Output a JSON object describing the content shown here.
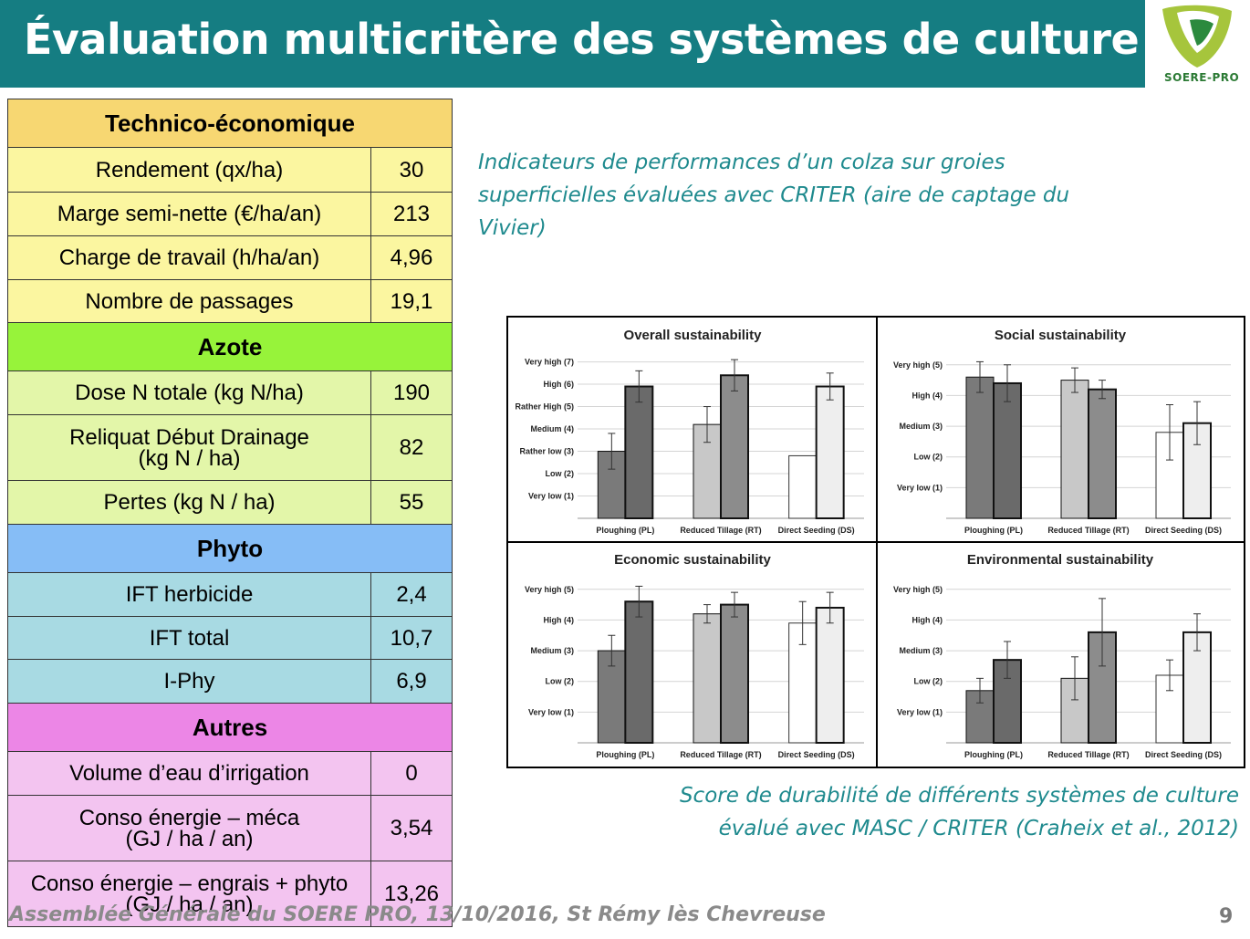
{
  "title": "Évaluation multicritère des systèmes de culture",
  "logo": {
    "text": "SOERE-PRO"
  },
  "table": {
    "groups": [
      {
        "key": "tech",
        "header": "Technico-économique",
        "rows": [
          {
            "label": "Rendement (qx/ha)",
            "value": "30"
          },
          {
            "label": "Marge semi-nette (€/ha/an)",
            "value": "213"
          },
          {
            "label": "Charge de travail (h/ha/an)",
            "value": "4,96"
          },
          {
            "label": "Nombre de passages",
            "value": "19,1"
          }
        ]
      },
      {
        "key": "azote",
        "header": "Azote",
        "rows": [
          {
            "label": "Dose N totale (kg N/ha)",
            "value": "190"
          },
          {
            "label": "Reliquat Début Drainage\n(kg N / ha)",
            "value": "82"
          },
          {
            "label": "Pertes (kg N / ha)",
            "value": "55"
          }
        ]
      },
      {
        "key": "phyto",
        "header": "Phyto",
        "rows": [
          {
            "label": "IFT herbicide",
            "value": "2,4"
          },
          {
            "label": "IFT total",
            "value": "10,7"
          },
          {
            "label": "I-Phy",
            "value": "6,9"
          }
        ]
      },
      {
        "key": "autres",
        "header": "Autres",
        "rows": [
          {
            "label": "Volume d’eau d’irrigation",
            "value": "0"
          },
          {
            "label": "Conso énergie – méca\n(GJ / ha / an)",
            "value": "3,54"
          },
          {
            "label": "Conso énergie – engrais + phyto\n(GJ / ha / an)",
            "value": "13,26"
          }
        ]
      }
    ]
  },
  "caption_top": "Indicateurs de performances d’un colza sur groies superficielles évaluées avec CRITER (aire de captage du Vivier)",
  "caption_bottom_line1": "Score de durabilité de différents systèmes de culture",
  "caption_bottom_line2": "évalué avec MASC / CRITER (Craheix et al., 2012)",
  "footer": "Assemblée Générale du SOERE PRO, 13/10/2016, St Rémy lès Chevreuse",
  "page_number": "9",
  "chart_data": [
    {
      "type": "bar",
      "title": "Overall sustainability",
      "categories": [
        "Ploughing (PL)",
        "Reduced Tillage (RT)",
        "Direct Seeding (DS)"
      ],
      "ylim": [
        0,
        7
      ],
      "yticks": [
        {
          "v": 1,
          "label": "Very low (1)"
        },
        {
          "v": 2,
          "label": "Low (2)"
        },
        {
          "v": 3,
          "label": "Rather low (3)"
        },
        {
          "v": 4,
          "label": "Medium (4)"
        },
        {
          "v": 5,
          "label": "Rather High (5)"
        },
        {
          "v": 6,
          "label": "High (6)"
        },
        {
          "v": 7,
          "label": "Very high (7)"
        }
      ],
      "bars": [
        {
          "cat": 0,
          "values": [
            3.0,
            5.9
          ],
          "err": [
            0.8,
            0.7
          ]
        },
        {
          "cat": 1,
          "values": [
            4.2,
            6.4
          ],
          "err": [
            0.8,
            0.7
          ]
        },
        {
          "cat": 2,
          "values": [
            2.8,
            5.9
          ],
          "err": [
            0,
            0.6
          ]
        }
      ]
    },
    {
      "type": "bar",
      "title": "Social sustainability",
      "categories": [
        "Ploughing (PL)",
        "Reduced Tillage (RT)",
        "Direct Seeding (DS)"
      ],
      "ylim": [
        0,
        5
      ],
      "yticks": [
        {
          "v": 1,
          "label": "Very low (1)"
        },
        {
          "v": 2,
          "label": "Low (2)"
        },
        {
          "v": 3,
          "label": "Medium (3)"
        },
        {
          "v": 4,
          "label": "High (4)"
        },
        {
          "v": 5,
          "label": "Very high (5)"
        }
      ],
      "bars": [
        {
          "cat": 0,
          "values": [
            4.6,
            4.4
          ],
          "err": [
            0.5,
            0.6
          ]
        },
        {
          "cat": 1,
          "values": [
            4.5,
            4.2
          ],
          "err": [
            0.4,
            0.3
          ]
        },
        {
          "cat": 2,
          "values": [
            2.8,
            3.1
          ],
          "err": [
            0.9,
            0.7
          ]
        }
      ]
    },
    {
      "type": "bar",
      "title": "Economic sustainability",
      "categories": [
        "Ploughing (PL)",
        "Reduced Tillage (RT)",
        "Direct Seeding (DS)"
      ],
      "ylim": [
        0,
        5
      ],
      "yticks": [
        {
          "v": 1,
          "label": "Very low (1)"
        },
        {
          "v": 2,
          "label": "Low (2)"
        },
        {
          "v": 3,
          "label": "Medium (3)"
        },
        {
          "v": 4,
          "label": "High (4)"
        },
        {
          "v": 5,
          "label": "Very high (5)"
        }
      ],
      "bars": [
        {
          "cat": 0,
          "values": [
            3.0,
            4.6
          ],
          "err": [
            0.5,
            0.5
          ]
        },
        {
          "cat": 1,
          "values": [
            4.2,
            4.5
          ],
          "err": [
            0.3,
            0.4
          ]
        },
        {
          "cat": 2,
          "values": [
            3.9,
            4.4
          ],
          "err": [
            0.7,
            0.5
          ]
        }
      ]
    },
    {
      "type": "bar",
      "title": "Environmental sustainability",
      "categories": [
        "Ploughing (PL)",
        "Reduced Tillage (RT)",
        "Direct Seeding (DS)"
      ],
      "ylim": [
        0,
        5
      ],
      "yticks": [
        {
          "v": 1,
          "label": "Very low (1)"
        },
        {
          "v": 2,
          "label": "Low (2)"
        },
        {
          "v": 3,
          "label": "Medium (3)"
        },
        {
          "v": 4,
          "label": "High (4)"
        },
        {
          "v": 5,
          "label": "Very high (5)"
        }
      ],
      "bars": [
        {
          "cat": 0,
          "values": [
            1.7,
            2.7
          ],
          "err": [
            0.4,
            0.6
          ]
        },
        {
          "cat": 1,
          "values": [
            2.1,
            3.6
          ],
          "err": [
            0.7,
            1.1
          ]
        },
        {
          "cat": 2,
          "values": [
            2.2,
            3.6
          ],
          "err": [
            0.5,
            0.6
          ]
        }
      ]
    }
  ],
  "colors": {
    "bar_pl_light": "#7a7a7a",
    "bar_dark": "#6a6a6a",
    "bar_rt_light": "#c8c8c8",
    "bar_ds_light": "#ffffff",
    "teal": "#157d82"
  }
}
